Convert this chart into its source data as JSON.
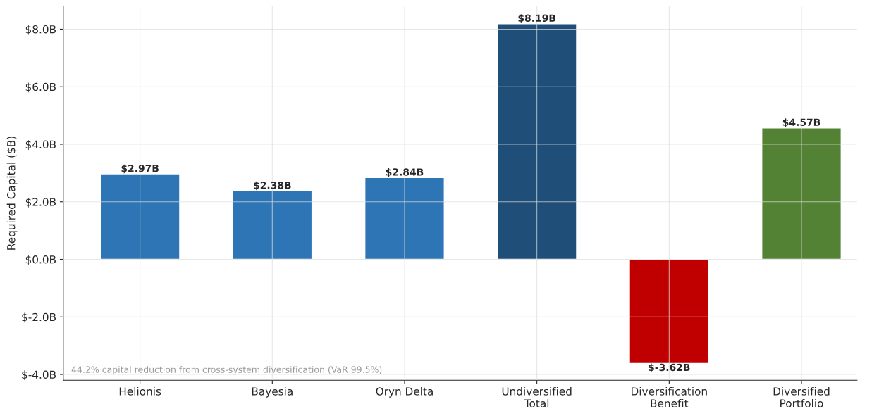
{
  "chart_data": {
    "type": "bar",
    "ylabel": "Required Capital ($B)",
    "categories": [
      "Helionis",
      "Bayesia",
      "Oryn Delta",
      "Undiversified\nTotal",
      "Diversification\nBenefit",
      "Diversified\nPortfolio"
    ],
    "values": [
      2.97,
      2.38,
      2.84,
      8.19,
      -3.62,
      4.57
    ],
    "colors": [
      "#2e75b6",
      "#2e75b6",
      "#2e75b6",
      "#1f4e79",
      "#c00000",
      "#548235"
    ],
    "value_labels": [
      "$2.97B",
      "$2.38B",
      "$2.84B",
      "$8.19B",
      "$-3.62B",
      "$4.57B"
    ],
    "ylim": [
      -4.2,
      8.8
    ],
    "yticks": [
      {
        "value": -4,
        "label": "$-4.0B"
      },
      {
        "value": -2,
        "label": "$-2.0B"
      },
      {
        "value": 0,
        "label": "$0.0B"
      },
      {
        "value": 2,
        "label": "$2.0B"
      },
      {
        "value": 4,
        "label": "$4.0B"
      },
      {
        "value": 6,
        "label": "$6.0B"
      },
      {
        "value": 8,
        "label": "$8.0B"
      }
    ],
    "grid": true,
    "annotations": [
      "44.2% capital reduction from cross-system diversification (VaR 99.5%)"
    ]
  }
}
